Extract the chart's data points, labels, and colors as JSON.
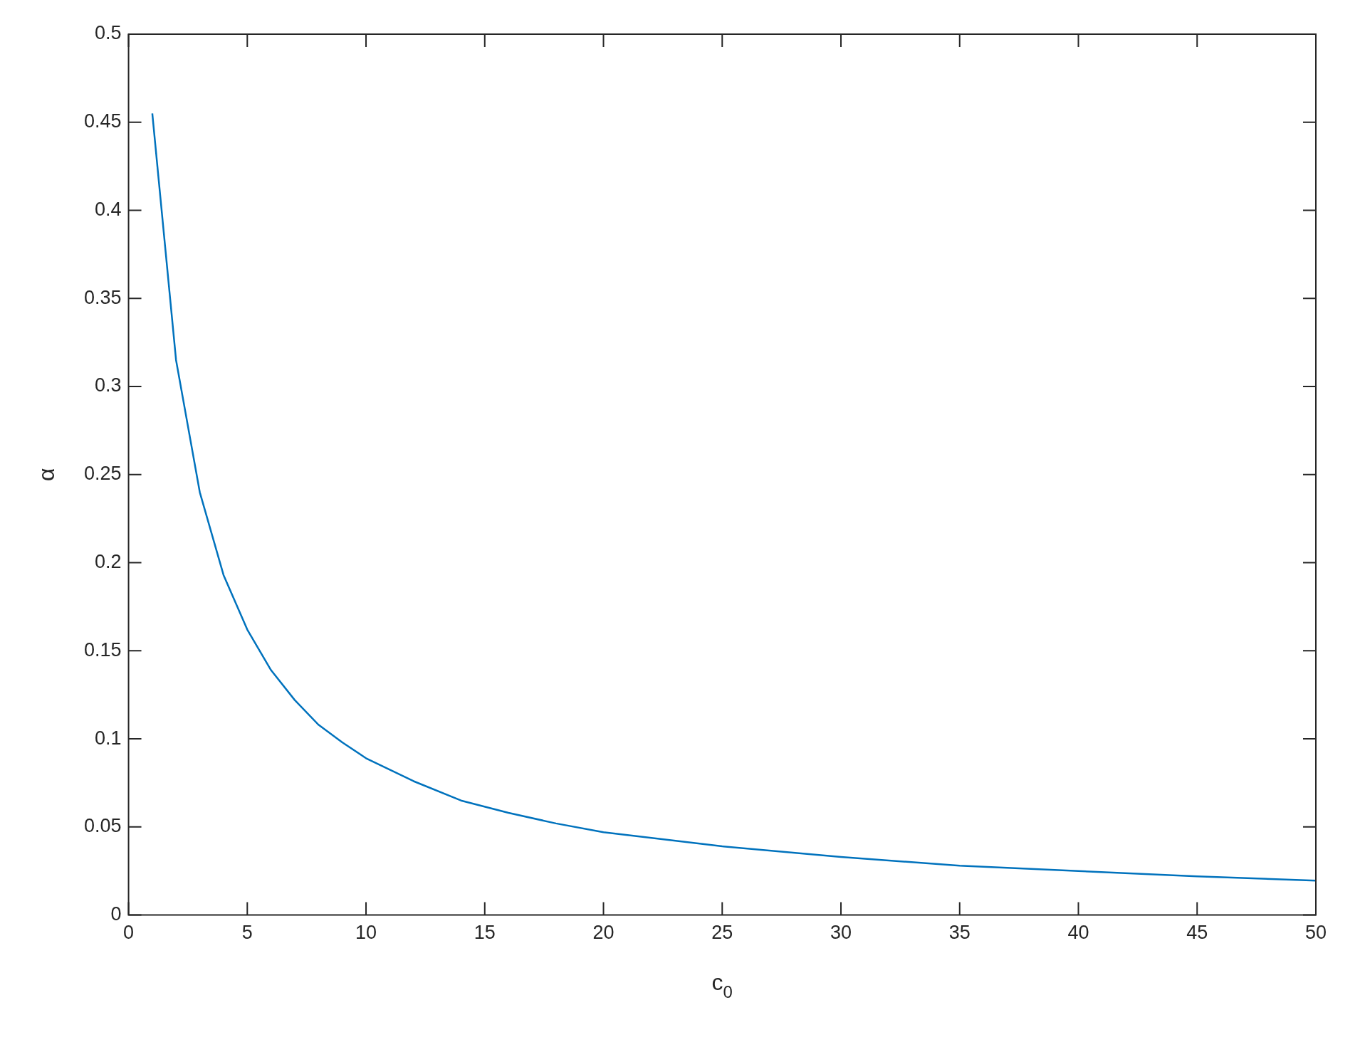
{
  "chart_data": {
    "type": "line",
    "xlabel": "c$_{0}$",
    "ylabel": "α",
    "x": [
      1,
      2,
      3,
      4,
      5,
      6,
      7,
      8,
      9,
      10,
      12,
      14,
      16,
      18,
      20,
      25,
      30,
      35,
      40,
      45,
      50
    ],
    "series": [
      {
        "color": "#0072bd",
        "values": [
          0.455,
          0.315,
          0.24,
          0.193,
          0.162,
          0.139,
          0.122,
          0.108,
          0.098,
          0.089,
          0.076,
          0.065,
          0.058,
          0.052,
          0.047,
          0.039,
          0.033,
          0.028,
          0.025,
          0.022,
          0.0195
        ]
      }
    ],
    "xlim": [
      0,
      50
    ],
    "xticks": [
      0,
      5,
      10,
      15,
      20,
      25,
      30,
      35,
      40,
      45,
      50
    ],
    "ylim": [
      0,
      0.5
    ],
    "yticks": [
      0,
      0.05,
      0.1,
      0.15,
      0.2,
      0.25,
      0.3,
      0.35,
      0.4,
      0.45,
      0.5
    ],
    "grid": false,
    "legend": false,
    "marker": "none",
    "line_style": "solid"
  }
}
